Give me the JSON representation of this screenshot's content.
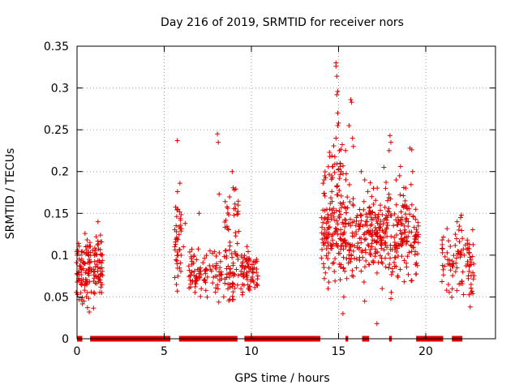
{
  "chart_data": {
    "type": "scatter",
    "title": "Day 216 of 2019, SRMTID for receiver nors",
    "xlabel": "GPS time / hours",
    "ylabel": "SRMTID / TECUs",
    "xlim": [
      0,
      24
    ],
    "ylim": [
      0,
      0.35
    ],
    "xticks": [
      0,
      5,
      10,
      15,
      20
    ],
    "yticks": [
      0,
      0.05,
      0.1,
      0.15,
      0.2,
      0.25,
      0.3,
      0.35
    ],
    "xtick_labels": [
      "0",
      "5",
      "10",
      "15",
      "20"
    ],
    "ytick_labels": [
      "0",
      "0.05",
      "0.1",
      "0.15",
      "0.2",
      "0.25",
      "0.3",
      "0.35"
    ],
    "grid": true,
    "marker": "+",
    "color": "#e00000",
    "zero_runs": [
      [
        0.0,
        0.3
      ],
      [
        0.75,
        5.35
      ],
      [
        5.85,
        9.2
      ],
      [
        9.6,
        13.95
      ],
      [
        15.4,
        15.55
      ],
      [
        16.35,
        16.75
      ],
      [
        17.9,
        18.05
      ],
      [
        19.45,
        21.0
      ],
      [
        21.5,
        22.1
      ]
    ],
    "clusters": [
      {
        "x": [
          -0.05,
          1.5
        ],
        "y": [
          0.03,
          0.14
        ],
        "n": 150
      },
      {
        "x": [
          5.6,
          6.0
        ],
        "y": [
          0.05,
          0.19
        ],
        "n": 40
      },
      {
        "x": [
          6.4,
          9.5
        ],
        "y": [
          0.03,
          0.12
        ],
        "n": 140
      },
      {
        "x": [
          8.4,
          9.3
        ],
        "y": [
          0.07,
          0.2
        ],
        "n": 40
      },
      {
        "x": [
          9.4,
          10.4
        ],
        "y": [
          0.04,
          0.12
        ],
        "n": 70
      },
      {
        "x": [
          14.0,
          19.6
        ],
        "y": [
          0.05,
          0.2
        ],
        "n": 500
      },
      {
        "x": [
          14.1,
          15.5
        ],
        "y": [
          0.15,
          0.25
        ],
        "n": 40
      },
      {
        "x": [
          20.9,
          22.8
        ],
        "y": [
          0.04,
          0.15
        ],
        "n": 90
      }
    ],
    "points": [
      [
        0.0,
        0.1
      ],
      [
        0.5,
        0.11
      ],
      [
        1.2,
        0.14
      ],
      [
        5.75,
        0.237
      ],
      [
        5.9,
        0.186
      ],
      [
        7.0,
        0.15
      ],
      [
        8.05,
        0.245
      ],
      [
        8.1,
        0.235
      ],
      [
        8.15,
        0.173
      ],
      [
        8.9,
        0.2
      ],
      [
        14.85,
        0.33
      ],
      [
        14.85,
        0.326
      ],
      [
        14.9,
        0.314
      ],
      [
        14.95,
        0.296
      ],
      [
        14.9,
        0.292
      ],
      [
        14.95,
        0.27
      ],
      [
        15.0,
        0.258
      ],
      [
        14.95,
        0.255
      ],
      [
        15.05,
        0.225
      ],
      [
        14.85,
        0.24
      ],
      [
        15.1,
        0.21
      ],
      [
        15.6,
        0.255
      ],
      [
        15.7,
        0.286
      ],
      [
        15.75,
        0.283
      ],
      [
        15.8,
        0.24
      ],
      [
        15.85,
        0.23
      ],
      [
        16.3,
        0.2
      ],
      [
        16.5,
        0.19
      ],
      [
        16.9,
        0.17
      ],
      [
        17.0,
        0.18
      ],
      [
        17.2,
        0.018
      ],
      [
        17.6,
        0.205
      ],
      [
        17.7,
        0.18
      ],
      [
        17.9,
        0.225
      ],
      [
        17.95,
        0.243
      ],
      [
        18.0,
        0.235
      ],
      [
        18.3,
        0.19
      ],
      [
        18.5,
        0.195
      ],
      [
        18.55,
        0.206
      ],
      [
        18.8,
        0.16
      ],
      [
        19.0,
        0.14
      ],
      [
        19.1,
        0.228
      ],
      [
        19.2,
        0.226
      ],
      [
        19.25,
        0.2
      ],
      [
        15.25,
        0.03
      ],
      [
        16.5,
        0.045
      ],
      [
        18.0,
        0.048
      ],
      [
        14.4,
        0.06
      ],
      [
        15.3,
        0.05
      ],
      [
        17.5,
        0.06
      ],
      [
        21.7,
        0.125
      ],
      [
        21.8,
        0.14
      ],
      [
        21.9,
        0.13
      ],
      [
        22.0,
        0.145
      ],
      [
        22.05,
        0.148
      ],
      [
        22.1,
        0.12
      ],
      [
        22.2,
        0.1
      ],
      [
        22.6,
        0.065
      ],
      [
        22.6,
        0.055
      ],
      [
        22.55,
        0.038
      ],
      [
        22.7,
        0.054
      ],
      [
        22.65,
        0.057
      ],
      [
        21.2,
        0.058
      ],
      [
        21.3,
        0.065
      ],
      [
        21.6,
        0.09
      ],
      [
        6.2,
        0.138
      ],
      [
        6.1,
        0.11
      ],
      [
        5.8,
        0.1
      ],
      [
        5.7,
        0.065
      ],
      [
        5.75,
        0.057
      ],
      [
        0.4,
        0.045
      ],
      [
        0.7,
        0.032
      ],
      [
        1.1,
        0.122
      ],
      [
        1.35,
        0.116
      ],
      [
        1.4,
        0.1
      ]
    ]
  }
}
